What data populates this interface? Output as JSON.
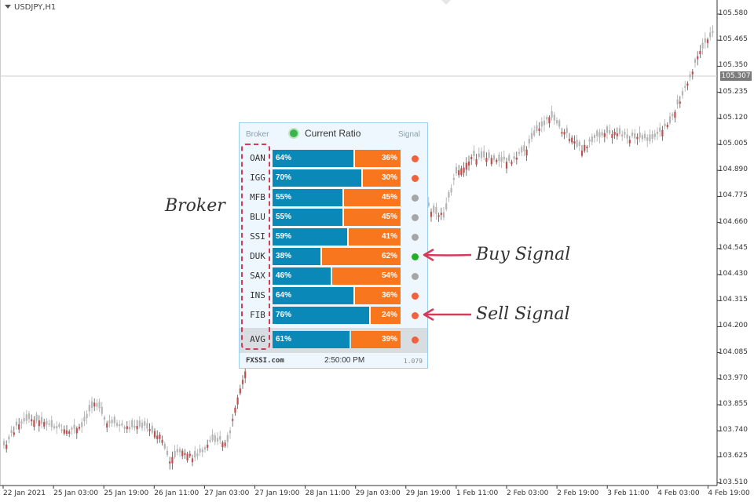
{
  "chart": {
    "symbol": "USDJPY,H1",
    "current_price": "105.307",
    "y_labels": [
      "105.580",
      "105.465",
      "105.350",
      "105.235",
      "105.120",
      "105.005",
      "104.890",
      "104.775",
      "104.660",
      "104.545",
      "104.430",
      "104.315",
      "104.200",
      "104.085",
      "103.970",
      "103.855",
      "103.740",
      "103.625",
      "103.510"
    ],
    "x_labels": [
      "22 Jan 2021",
      "25 Jan 03:00",
      "25 Jan 19:00",
      "26 Jan 11:00",
      "27 Jan 03:00",
      "27 Jan 19:00",
      "28 Jan 11:00",
      "29 Jan 03:00",
      "29 Jan 19:00",
      "1 Feb 11:00",
      "2 Feb 03:00",
      "2 Feb 19:00",
      "3 Feb 11:00",
      "4 Feb 03:00",
      "4 Feb 19:00"
    ]
  },
  "panel": {
    "header_broker": "Broker",
    "header_title": "Current Ratio",
    "header_signal": "Signal",
    "rows": [
      {
        "broker": "OAN",
        "buy": 64,
        "sell": 36,
        "buy_label": "64%",
        "sell_label": "36%",
        "signal": "sell"
      },
      {
        "broker": "IGG",
        "buy": 70,
        "sell": 30,
        "buy_label": "70%",
        "sell_label": "30%",
        "signal": "sell"
      },
      {
        "broker": "MFB",
        "buy": 55,
        "sell": 45,
        "buy_label": "55%",
        "sell_label": "45%",
        "signal": "neutral"
      },
      {
        "broker": "BLU",
        "buy": 55,
        "sell": 45,
        "buy_label": "55%",
        "sell_label": "45%",
        "signal": "neutral"
      },
      {
        "broker": "SSI",
        "buy": 59,
        "sell": 41,
        "buy_label": "59%",
        "sell_label": "41%",
        "signal": "neutral"
      },
      {
        "broker": "DUK",
        "buy": 38,
        "sell": 62,
        "buy_label": "38%",
        "sell_label": "62%",
        "signal": "buy"
      },
      {
        "broker": "SAX",
        "buy": 46,
        "sell": 54,
        "buy_label": "46%",
        "sell_label": "54%",
        "signal": "neutral"
      },
      {
        "broker": "INS",
        "buy": 64,
        "sell": 36,
        "buy_label": "64%",
        "sell_label": "36%",
        "signal": "sell"
      },
      {
        "broker": "FIB",
        "buy": 76,
        "sell": 24,
        "buy_label": "76%",
        "sell_label": "24%",
        "signal": "sell"
      }
    ],
    "avg": {
      "broker": "AVG",
      "buy": 61,
      "sell": 39,
      "buy_label": "61%",
      "sell_label": "39%",
      "signal": "sell"
    },
    "footer_brand": "FXSSI.com",
    "footer_time": "2:50:00 PM",
    "footer_version": "1.079"
  },
  "annotations": {
    "broker_note": "Broker",
    "buy_note": "Buy Signal",
    "sell_note": "Sell Signal"
  },
  "colors": {
    "buy_bar": "#0a89b9",
    "sell_bar": "#f8761e",
    "signal_sell": "#f0623e",
    "signal_buy": "#22b022",
    "signal_neutral": "#a6a6a6",
    "annotation": "#d63a5a",
    "bull_candle": "#b5b5b5",
    "bear_candle": "#c0504d"
  }
}
